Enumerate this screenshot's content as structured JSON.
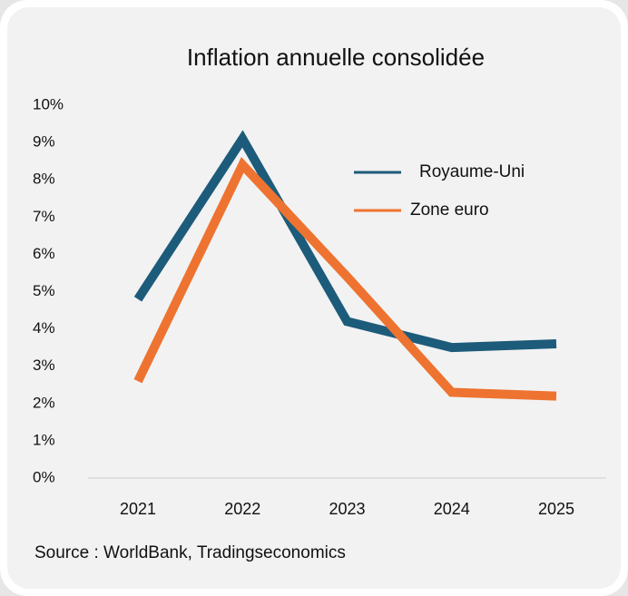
{
  "chart_data": {
    "type": "line",
    "title": "Inflation annuelle consolidée",
    "source": "Source : WorldBank, Tradingseconomics",
    "categories": [
      "2021",
      "2022",
      "2023",
      "2024",
      "2025"
    ],
    "series": [
      {
        "name": "Royaume-Uni",
        "color": "#1d5b7b",
        "values": [
          4.8,
          9.1,
          4.2,
          3.5,
          3.6
        ]
      },
      {
        "name": "Zone euro",
        "color": "#ee7330",
        "values": [
          2.6,
          8.4,
          5.4,
          2.3,
          2.2
        ]
      }
    ],
    "ylim": [
      0,
      10
    ],
    "yticks": [
      {
        "value": 0,
        "label": "0%"
      },
      {
        "value": 1,
        "label": "1%"
      },
      {
        "value": 2,
        "label": "2%"
      },
      {
        "value": 3,
        "label": "3%"
      },
      {
        "value": 4,
        "label": "4%"
      },
      {
        "value": 5,
        "label": "5%"
      },
      {
        "value": 6,
        "label": "6%"
      },
      {
        "value": 7,
        "label": "7%"
      },
      {
        "value": 8,
        "label": "8%"
      },
      {
        "value": 9,
        "label": "9%"
      },
      {
        "value": 10,
        "label": "10%"
      }
    ],
    "grid": false,
    "legend": "upper right"
  }
}
